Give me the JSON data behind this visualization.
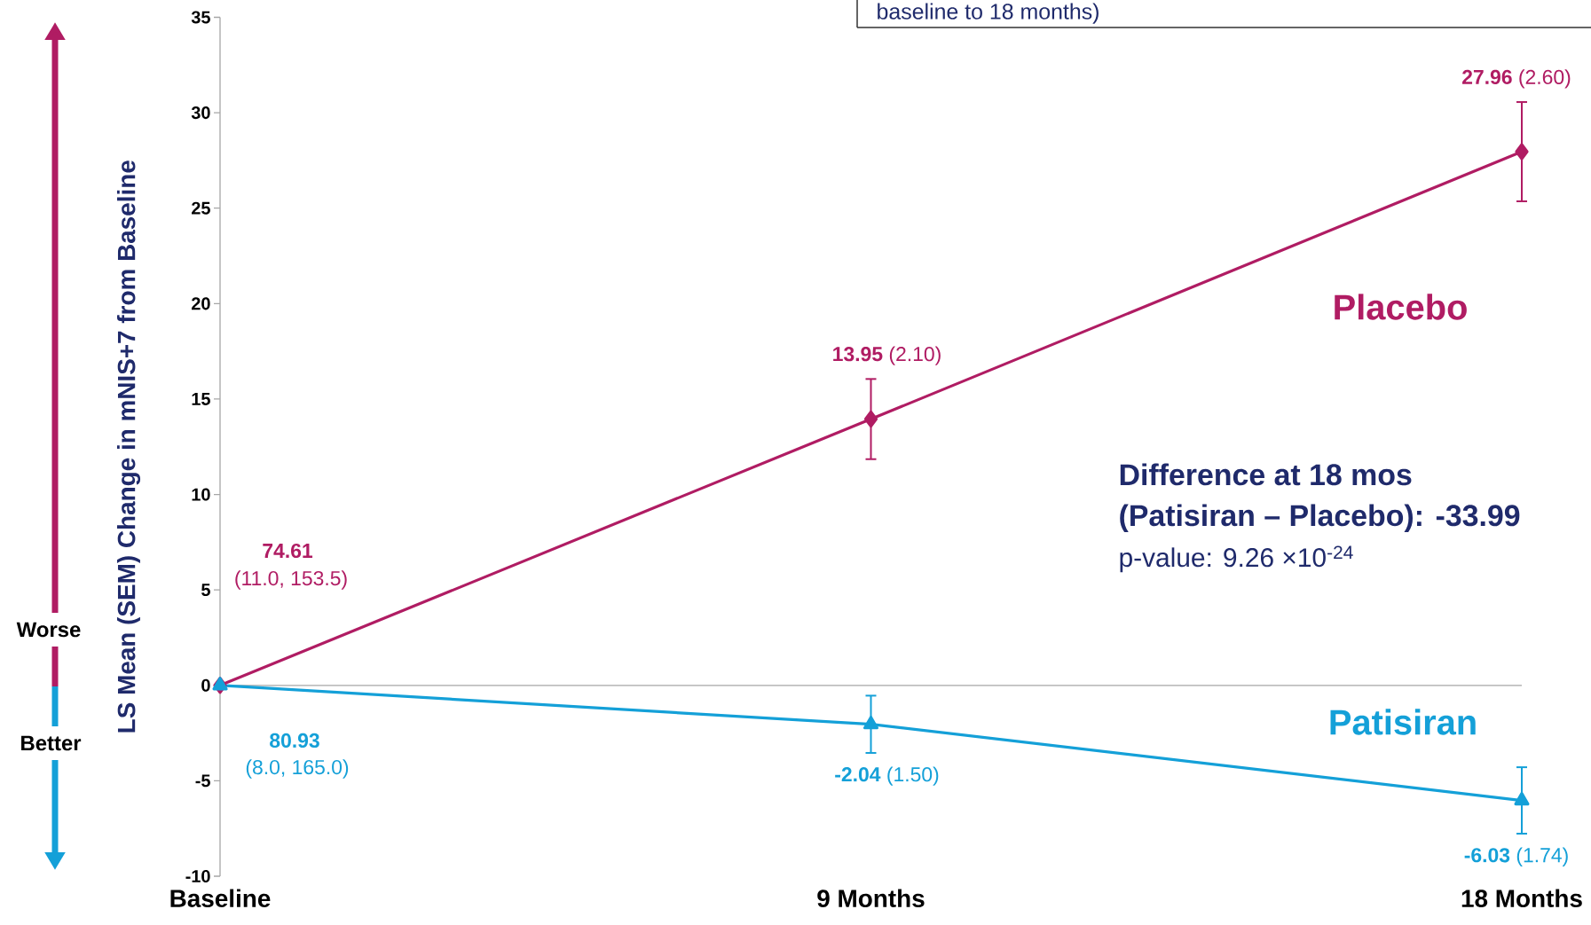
{
  "chart_data": {
    "type": "line",
    "ylabel": "LS Mean (SEM) Change in mNIS+7 from Baseline",
    "categories": [
      "Baseline",
      "9 Months",
      "18 Months"
    ],
    "series": [
      {
        "name": "Placebo",
        "color": "#b01c63",
        "marker": "diamond",
        "values": [
          0,
          13.95,
          27.96
        ],
        "errors": [
          null,
          2.1,
          2.6
        ],
        "value_labels": [
          null,
          "**13.95** (2.10)",
          "**27.96** (2.60)"
        ]
      },
      {
        "name": "Patisiran",
        "color": "#14a0d8",
        "marker": "triangle",
        "values": [
          0,
          -2.04,
          -6.03
        ],
        "errors": [
          null,
          1.5,
          1.74
        ],
        "value_labels": [
          null,
          "**-2.04** (1.50)",
          "**-6.03** (1.74)"
        ]
      }
    ],
    "ylim": [
      -10,
      35
    ],
    "yticks": [
      -10,
      -5,
      0,
      5,
      10,
      15,
      20,
      25,
      30,
      35
    ],
    "annotations": [
      "baseline to 18 months)",
      "74.61",
      "(11.0, 153.5)",
      "80.93",
      "(8.0, 165.0)",
      "Difference at 18 mos",
      "(Patisiran – Placebo): -33.99",
      "p-value: 9.26 ×10$^{-24}$",
      "Worse",
      "Better"
    ]
  }
}
